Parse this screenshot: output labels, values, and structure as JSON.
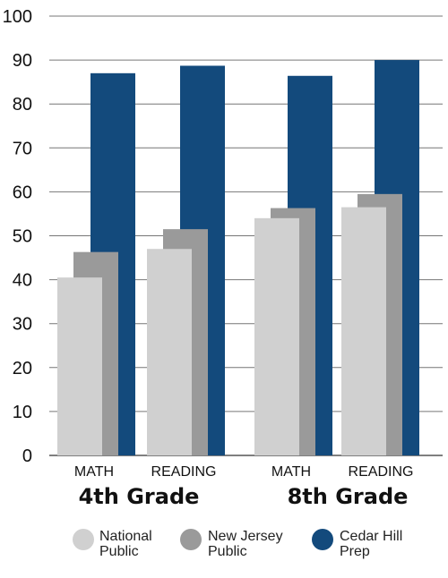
{
  "chart_data": {
    "type": "bar",
    "ylim": [
      0,
      100
    ],
    "yticks": [
      0,
      10,
      20,
      30,
      40,
      50,
      60,
      70,
      80,
      90,
      100
    ],
    "grid": true,
    "categories": [
      "MATH",
      "READING",
      "MATH",
      "READING"
    ],
    "groups": [
      {
        "label": "4th Grade",
        "categories": [
          "MATH",
          "READING"
        ]
      },
      {
        "label": "8th Grade",
        "categories": [
          "MATH",
          "READING"
        ]
      }
    ],
    "series": [
      {
        "name_lines": [
          "National",
          "Public"
        ],
        "color": "#d0d0d0",
        "values": [
          40.5,
          47,
          54,
          56.5
        ]
      },
      {
        "name_lines": [
          "New Jersey",
          "Public"
        ],
        "color": "#9a9a9a",
        "values": [
          46.3,
          51.5,
          56.3,
          59.5
        ]
      },
      {
        "name_lines": [
          "Cedar Hill",
          "Prep"
        ],
        "color": "#134a7c",
        "values": [
          87,
          88.7,
          86.4,
          90
        ]
      }
    ],
    "legend_position": "bottom"
  }
}
